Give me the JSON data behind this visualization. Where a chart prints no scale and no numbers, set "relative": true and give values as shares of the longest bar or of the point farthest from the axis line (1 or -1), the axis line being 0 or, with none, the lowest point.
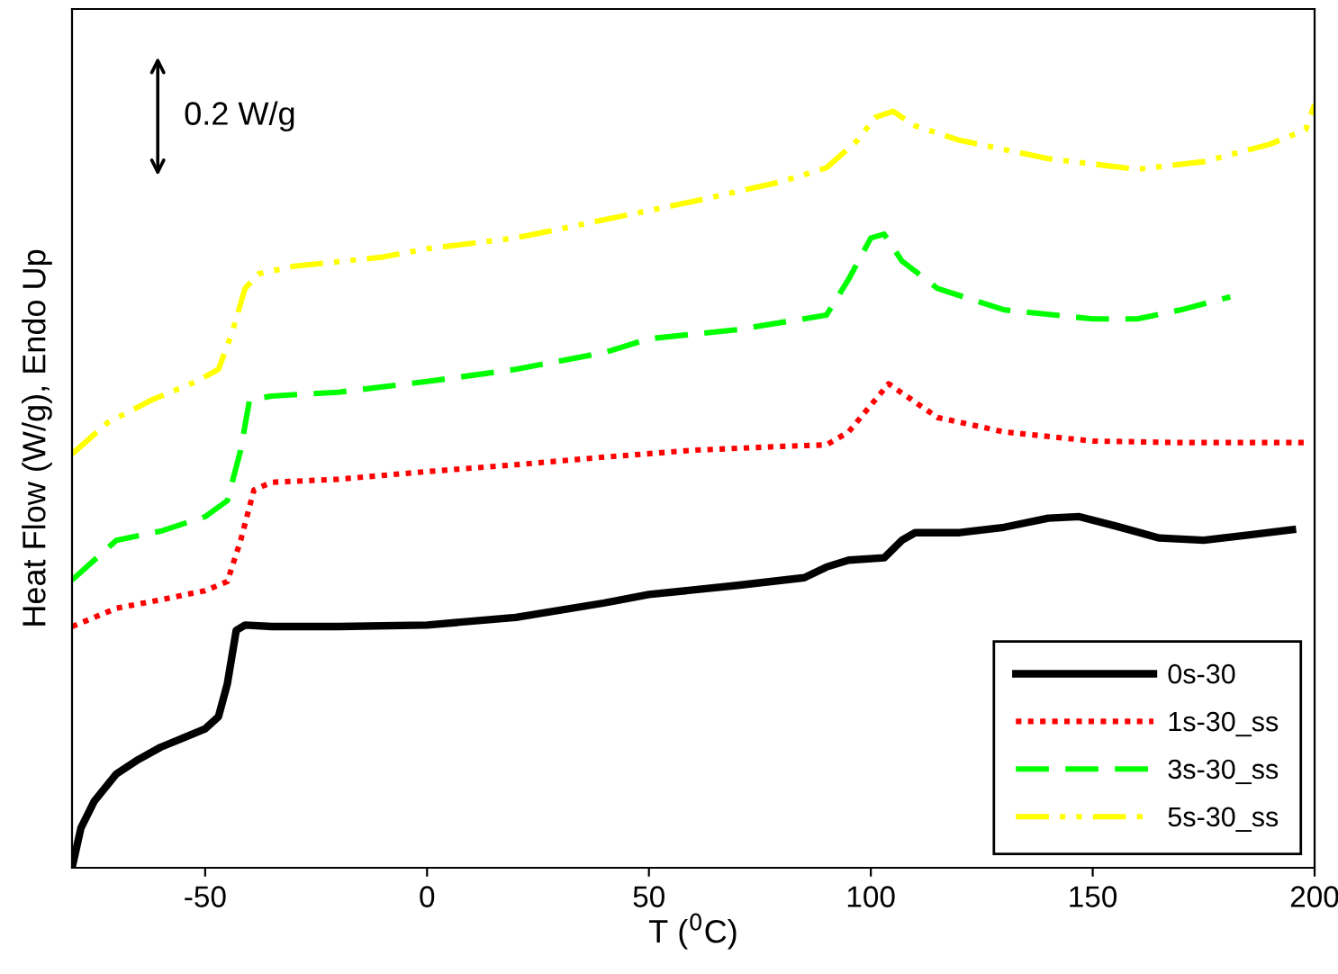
{
  "chart_data": {
    "type": "line",
    "relative": true,
    "xlabel": "T ($^{0}$C)",
    "ylabel": "Heat Flow (W/g), Endo Up",
    "xlim": [
      -80,
      200
    ],
    "xticks": [
      -50,
      0,
      50,
      100,
      150,
      200
    ],
    "legend": "bottom right",
    "grid": false,
    "annotations": [
      "0.2 W/g"
    ],
    "series": [
      {
        "name": "0s-30",
        "color": "#000000",
        "line_style": "solid",
        "x": [
          -80,
          -78,
          -75,
          -70,
          -65,
          -60,
          -55,
          -50,
          -47,
          -45,
          -43,
          -41,
          -35,
          -20,
          0,
          20,
          40,
          50,
          70,
          85,
          90,
          95,
          103,
          107,
          110,
          120,
          130,
          140,
          147,
          155,
          165,
          175,
          185,
          195
        ],
        "values": [
          0,
          0.052,
          0.087,
          0.123,
          0.142,
          0.158,
          0.17,
          0.182,
          0.198,
          0.241,
          0.311,
          0.318,
          0.316,
          0.316,
          0.318,
          0.328,
          0.347,
          0.358,
          0.37,
          0.38,
          0.394,
          0.403,
          0.406,
          0.429,
          0.439,
          0.439,
          0.446,
          0.458,
          0.46,
          0.448,
          0.432,
          0.429,
          0.436,
          0.443
        ]
      },
      {
        "name": "1s-30_ss",
        "color": "#ff0000",
        "line_style": "dotted",
        "x": [
          -80,
          -70,
          -60,
          -50,
          -45,
          -42,
          -39,
          -35,
          -20,
          0,
          20,
          40,
          60,
          80,
          90,
          95,
          100,
          104,
          108,
          115,
          130,
          150,
          170,
          198
        ],
        "values": [
          0.316,
          0.34,
          0.351,
          0.363,
          0.375,
          0.429,
          0.495,
          0.505,
          0.509,
          0.519,
          0.528,
          0.538,
          0.547,
          0.552,
          0.554,
          0.571,
          0.606,
          0.634,
          0.618,
          0.59,
          0.571,
          0.559,
          0.557,
          0.557
        ]
      },
      {
        "name": "3s-30_ss",
        "color": "#00ff00",
        "line_style": "dashed",
        "x": [
          -80,
          -70,
          -60,
          -50,
          -45,
          -42,
          -40,
          -35,
          -20,
          0,
          20,
          40,
          50,
          70,
          90,
          95,
          100,
          103,
          107,
          115,
          130,
          150,
          160,
          170,
          181
        ],
        "values": [
          0.377,
          0.429,
          0.441,
          0.46,
          0.481,
          0.547,
          0.613,
          0.618,
          0.623,
          0.637,
          0.653,
          0.675,
          0.693,
          0.705,
          0.724,
          0.771,
          0.825,
          0.83,
          0.795,
          0.759,
          0.731,
          0.719,
          0.719,
          0.731,
          0.748
        ]
      },
      {
        "name": "5s-30_ss",
        "color": "#ffff00",
        "line_style": "dashdot",
        "x": [
          -80,
          -72,
          -62,
          -52,
          -47,
          -44,
          -41,
          -38,
          -30,
          -10,
          0,
          20,
          40,
          60,
          80,
          90,
          97,
          101,
          105,
          110,
          120,
          140,
          160,
          175,
          190,
          198,
          200
        ],
        "values": [
          0.542,
          0.583,
          0.613,
          0.637,
          0.653,
          0.7,
          0.759,
          0.778,
          0.788,
          0.8,
          0.811,
          0.825,
          0.849,
          0.873,
          0.899,
          0.917,
          0.953,
          0.983,
          0.991,
          0.972,
          0.953,
          0.929,
          0.915,
          0.925,
          0.948,
          0.967,
          1.0
        ]
      }
    ]
  }
}
